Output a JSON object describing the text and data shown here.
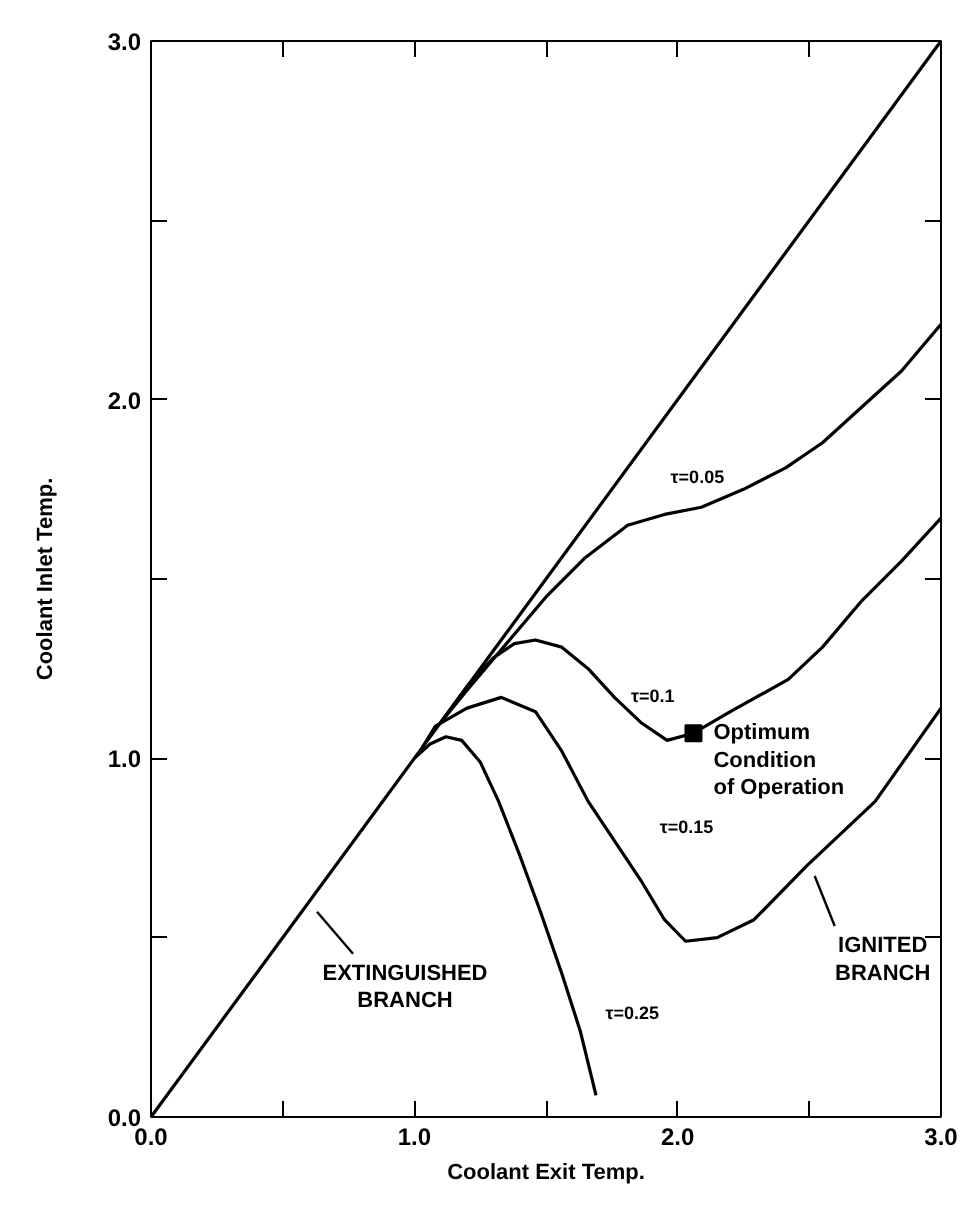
{
  "chart_data": {
    "type": "line",
    "xlabel": "Coolant Exit Temp.",
    "ylabel": "Coolant Inlet Temp.",
    "xlim": [
      0,
      3
    ],
    "ylim": [
      0,
      3
    ],
    "xticks": [
      {
        "value": 0,
        "label": "0.0"
      },
      {
        "value": 0.5,
        "label": null
      },
      {
        "value": 1,
        "label": "1.0"
      },
      {
        "value": 1.5,
        "label": null
      },
      {
        "value": 2,
        "label": "2.0"
      },
      {
        "value": 2.5,
        "label": null
      },
      {
        "value": 3,
        "label": "3.0"
      }
    ],
    "yticks": [
      {
        "value": 0,
        "label": "0.0"
      },
      {
        "value": 0.5,
        "label": null
      },
      {
        "value": 1,
        "label": "1.0"
      },
      {
        "value": 1.5,
        "label": null
      },
      {
        "value": 2,
        "label": "2.0"
      },
      {
        "value": 2.5,
        "label": null
      },
      {
        "value": 3,
        "label": "3.0"
      }
    ],
    "grid": false,
    "marker": "none",
    "line_style": "solid",
    "series": [
      {
        "color": "#000000",
        "x": [
          0,
          3
        ],
        "values": [
          0,
          3
        ]
      },
      {
        "color": "#000000",
        "x": [
          1.1,
          1.2,
          1.35,
          1.5,
          1.65,
          1.81,
          1.95,
          2.09,
          2.25,
          2.41,
          2.55,
          2.67,
          2.85,
          3.0
        ],
        "values": [
          1.1,
          1.19,
          1.32,
          1.45,
          1.56,
          1.65,
          1.68,
          1.7,
          1.75,
          1.81,
          1.88,
          1.96,
          2.08,
          2.21
        ]
      },
      {
        "color": "#000000",
        "x": [
          1.1,
          1.2,
          1.3,
          1.38,
          1.46,
          1.56,
          1.66,
          1.76,
          1.86,
          1.96,
          2.06,
          2.2,
          2.42,
          2.55,
          2.7,
          2.85,
          3.0
        ],
        "values": [
          1.1,
          1.2,
          1.28,
          1.32,
          1.33,
          1.31,
          1.25,
          1.17,
          1.1,
          1.05,
          1.07,
          1.13,
          1.22,
          1.31,
          1.44,
          1.55,
          1.67
        ]
      },
      {
        "color": "#000000",
        "x": [
          1.03,
          1.08,
          1.2,
          1.33,
          1.46,
          1.56,
          1.66,
          1.76,
          1.86,
          1.95,
          2.03,
          2.15,
          2.29,
          2.49,
          2.75,
          3.0
        ],
        "values": [
          1.03,
          1.09,
          1.14,
          1.17,
          1.13,
          1.02,
          0.88,
          0.77,
          0.66,
          0.55,
          0.49,
          0.5,
          0.55,
          0.7,
          0.88,
          1.14
        ]
      },
      {
        "color": "#000000",
        "x": [
          1.0,
          1.06,
          1.12,
          1.18,
          1.25,
          1.32,
          1.4,
          1.48,
          1.56,
          1.63,
          1.69
        ],
        "values": [
          1.0,
          1.04,
          1.06,
          1.05,
          0.99,
          0.88,
          0.73,
          0.57,
          0.4,
          0.24,
          0.06
        ]
      },
      {
        "type": "scatter",
        "marker": "square",
        "color": "#000000",
        "x": [
          2.06
        ],
        "values": [
          1.07
        ]
      }
    ],
    "annotations": [
      {
        "text": "τ=0.05",
        "x": 2.09,
        "y": 1.7
      },
      {
        "text": "τ=0.1",
        "x": 1.86,
        "y": 1.1
      },
      {
        "text": "τ=0.15",
        "x": 1.76,
        "y": 0.77
      },
      {
        "text": "τ=0.25",
        "x": 1.63,
        "y": 0.24
      },
      {
        "text": "Optimum\nCondition\nof Operation",
        "x": 2.06,
        "y": 1.07
      },
      {
        "text": "EXTINGUISHED\nBRANCH",
        "x": 0.6,
        "y": 0.6
      },
      {
        "text": "IGNITED\nBRANCH",
        "x": 2.49,
        "y": 0.7
      }
    ]
  }
}
